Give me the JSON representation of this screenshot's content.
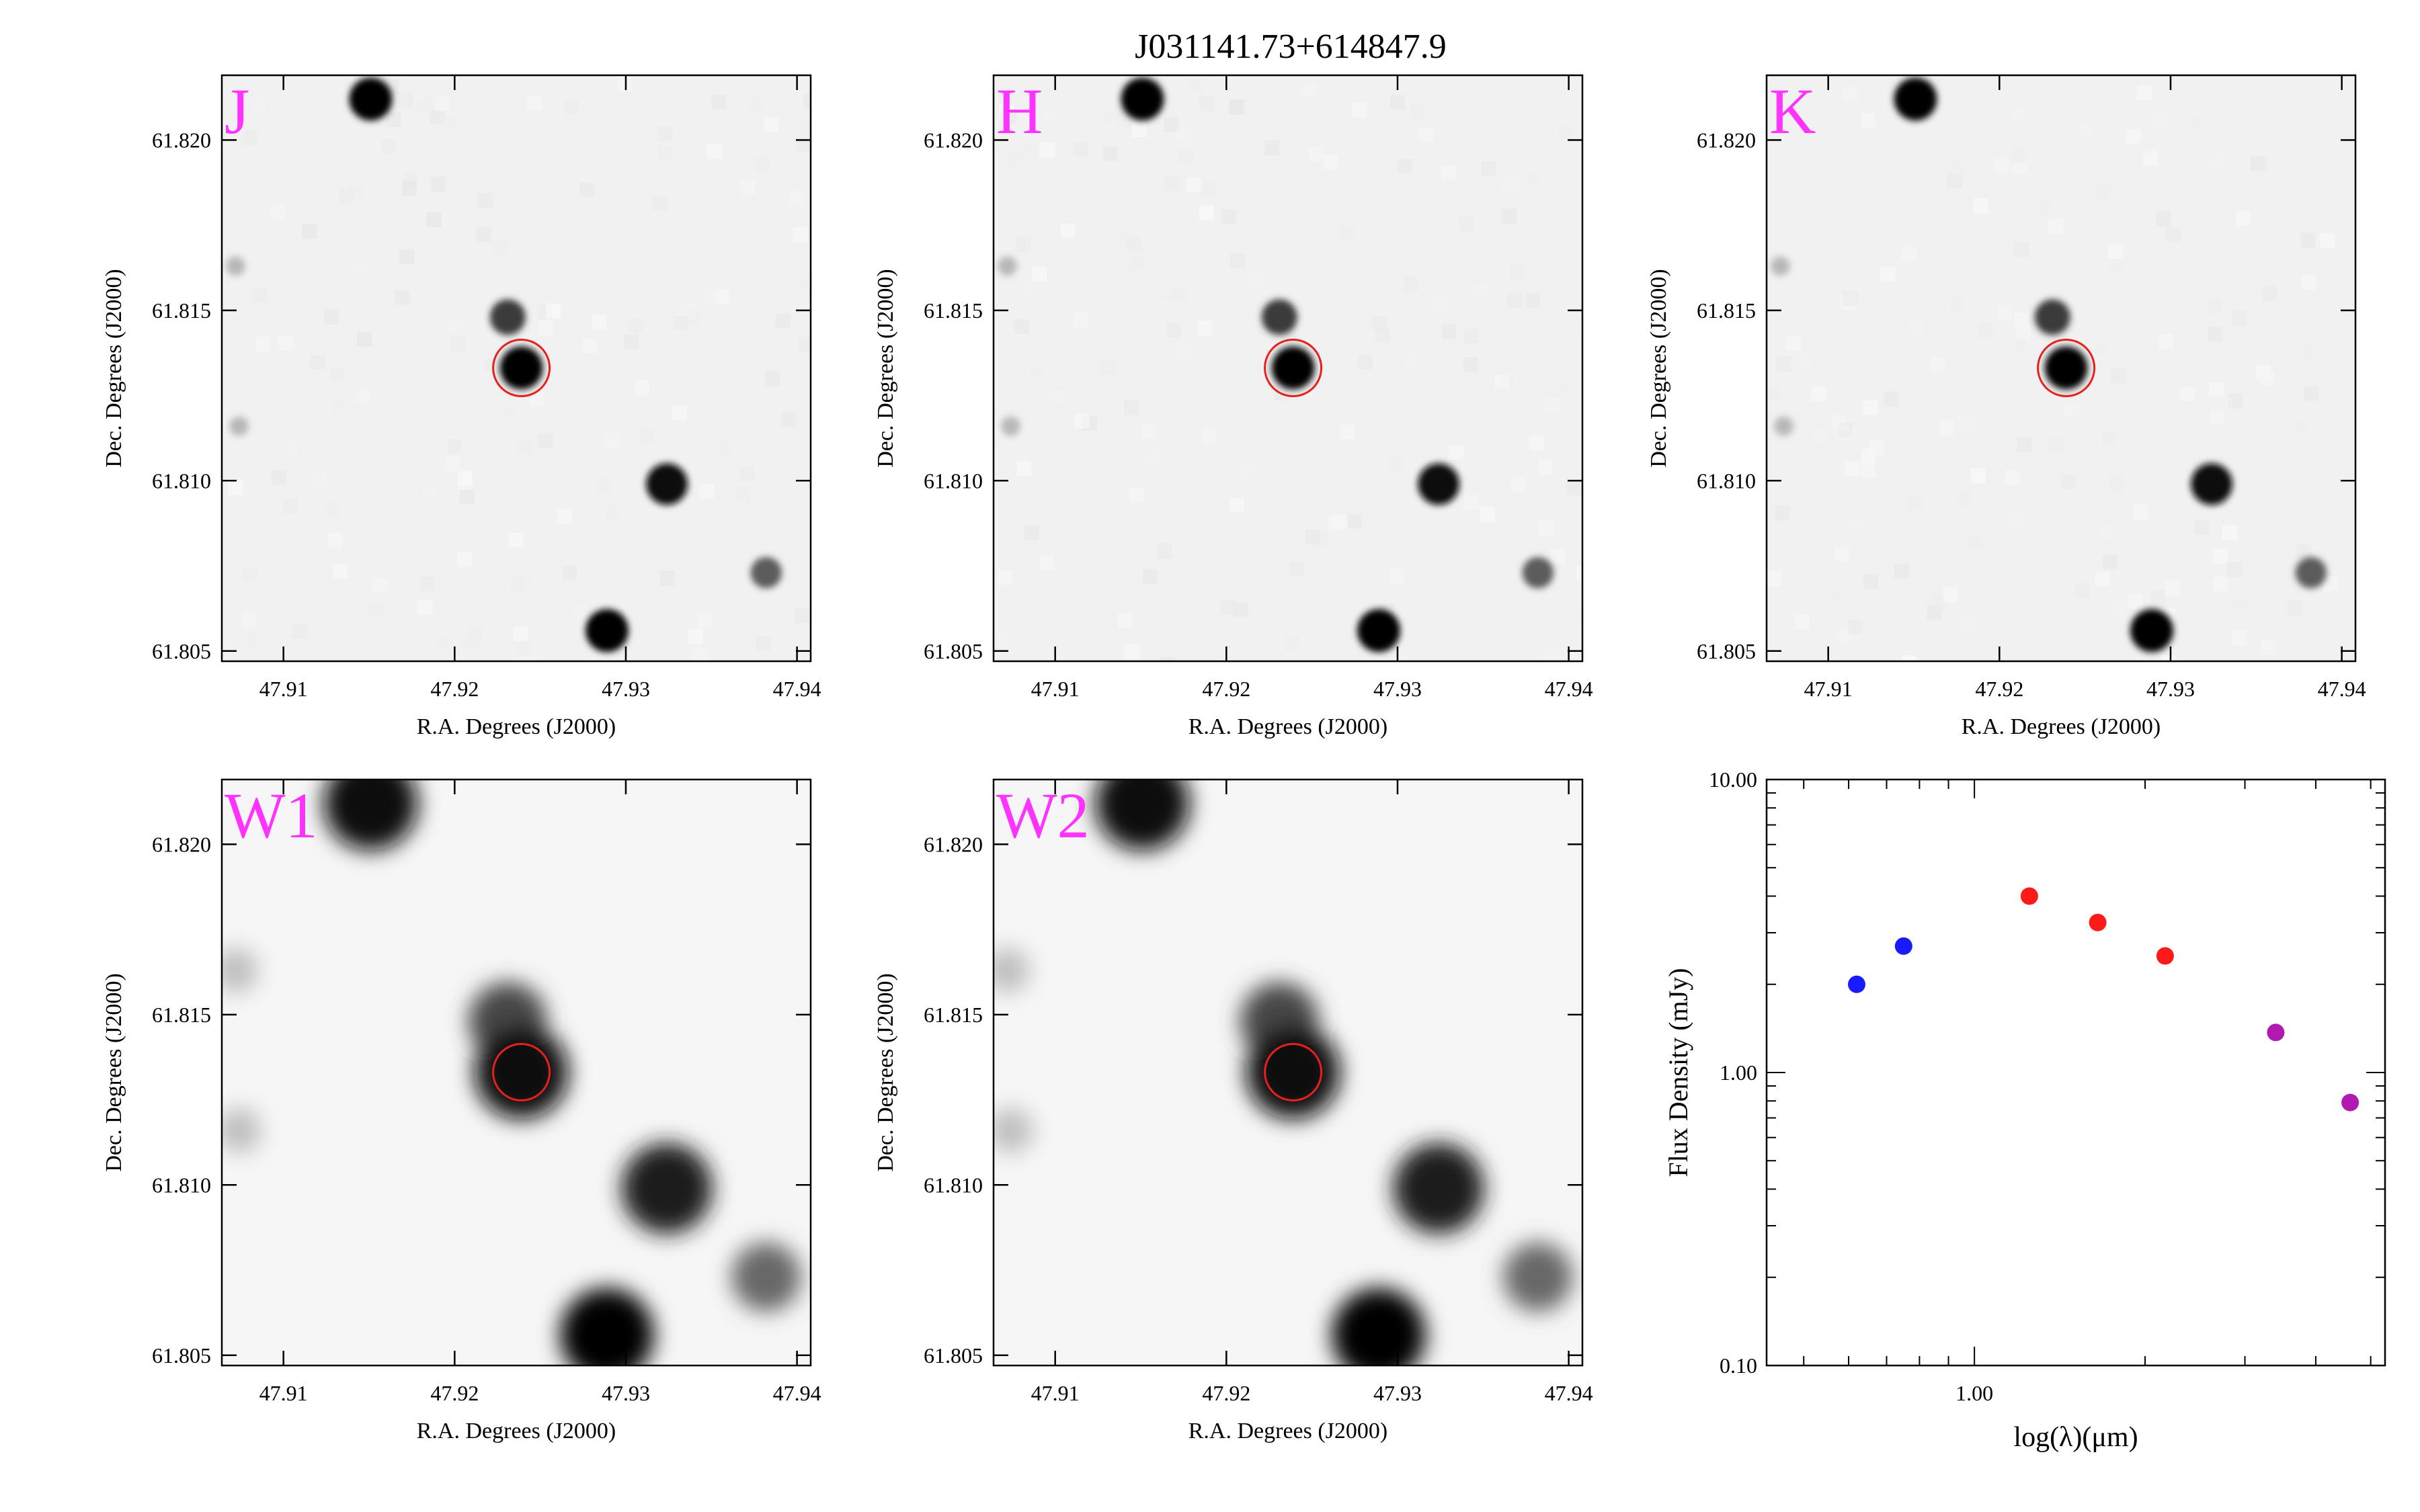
{
  "figure": {
    "title": "J031141.73+614847.9",
    "label_color": "#ff33ff",
    "circle_color": "#e8201c"
  },
  "image_panels": [
    {
      "band": "J",
      "xlabel": "R.A. Degrees (J2000)",
      "ylabel": "Dec. Degrees (J2000)",
      "wise": false
    },
    {
      "band": "H",
      "xlabel": "R.A. Degrees (J2000)",
      "ylabel": "Dec. Degrees (J2000)",
      "wise": false
    },
    {
      "band": "K",
      "xlabel": "R.A. Degrees (J2000)",
      "ylabel": "Dec. Degrees (J2000)",
      "wise": false
    },
    {
      "band": "W1",
      "xlabel": "R.A. Degrees (J2000)",
      "ylabel": "Dec. Degrees (J2000)",
      "wise": true
    },
    {
      "band": "W2",
      "xlabel": "R.A. Degrees (J2000)",
      "ylabel": "Dec. Degrees (J2000)",
      "wise": true
    }
  ],
  "image_axes": {
    "ra_range": [
      47.9064,
      47.9408
    ],
    "dec_range": [
      61.8047,
      61.8219
    ],
    "ra_ticks": [
      "47.91",
      "47.92",
      "47.93",
      "47.94"
    ],
    "dec_ticks": [
      "61.805",
      "61.810",
      "61.815",
      "61.820"
    ]
  },
  "target": {
    "ra": 47.9239,
    "dec": 61.81331
  },
  "sources": [
    {
      "ra": 47.9151,
      "dec": 61.8212,
      "flux": 1.0
    },
    {
      "ra": 47.9231,
      "dec": 61.8148,
      "flux": 0.75
    },
    {
      "ra": 47.9239,
      "dec": 61.81331,
      "flux": 1.0
    },
    {
      "ra": 47.9324,
      "dec": 61.8099,
      "flux": 0.95
    },
    {
      "ra": 47.9382,
      "dec": 61.8073,
      "flux": 0.6
    },
    {
      "ra": 47.9289,
      "dec": 61.8056,
      "flux": 1.0
    },
    {
      "ra": 47.9072,
      "dec": 61.8163,
      "flux": 0.2
    },
    {
      "ra": 47.9074,
      "dec": 61.8116,
      "flux": 0.2
    }
  ],
  "chart_data": {
    "type": "scatter",
    "xlabel": "log(λ)(μm)",
    "ylabel": "Flux Density (mJy)",
    "xscale": "log",
    "yscale": "log",
    "xlim": [
      0.43,
      5.3
    ],
    "ylim": [
      0.1,
      10.0
    ],
    "x_tick_labels": [
      "1.00"
    ],
    "y_tick_labels": [
      "0.10",
      "1.00",
      "10.00"
    ],
    "grid": false,
    "series": [
      {
        "color": "#1a1aff",
        "points": [
          {
            "x": 0.62,
            "y": 2.0
          },
          {
            "x": 0.75,
            "y": 2.7
          }
        ]
      },
      {
        "color": "#ff1a1a",
        "points": [
          {
            "x": 1.25,
            "y": 4.0
          },
          {
            "x": 1.65,
            "y": 3.25
          },
          {
            "x": 2.17,
            "y": 2.5
          }
        ]
      },
      {
        "color": "#b01ab0",
        "points": [
          {
            "x": 3.4,
            "y": 1.37
          },
          {
            "x": 4.6,
            "y": 0.79
          }
        ]
      }
    ]
  }
}
